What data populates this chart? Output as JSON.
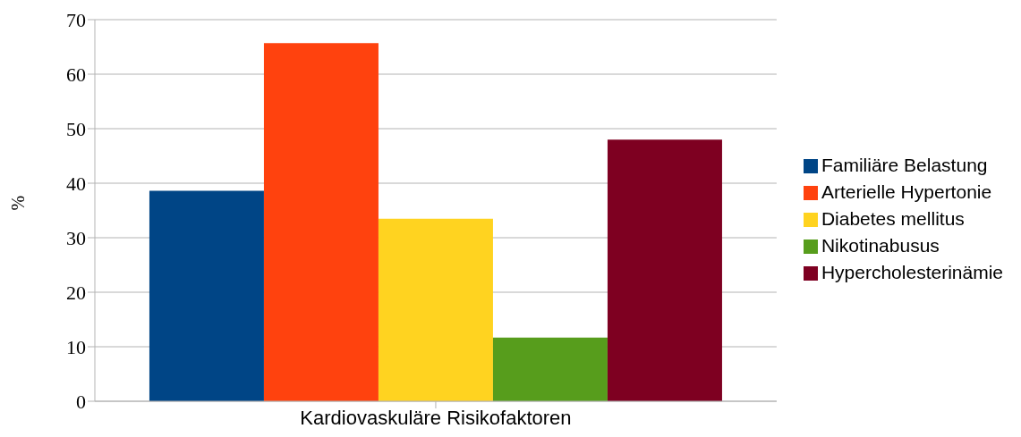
{
  "chart_data": {
    "type": "bar",
    "categories": [
      "Kardiovaskuläre Risikofaktoren"
    ],
    "ylabel": "%",
    "series": [
      {
        "name": "Familiäre Belastung",
        "color": "#004586",
        "values": [
          38.6
        ]
      },
      {
        "name": "Arterielle Hypertonie",
        "color": "#ff420e",
        "values": [
          65.7
        ]
      },
      {
        "name": "Diabetes mellitus",
        "color": "#ffd320",
        "values": [
          33.5
        ]
      },
      {
        "name": "Nikotinabusus",
        "color": "#579d1c",
        "values": [
          11.7
        ]
      },
      {
        "name": "Hypercholesterinämie",
        "color": "#7e0021",
        "values": [
          48.0
        ]
      }
    ],
    "ylim": [
      0,
      70
    ],
    "yticks": [
      0,
      10,
      20,
      30,
      40,
      50,
      60,
      70
    ],
    "grid": "y",
    "legend": "right"
  }
}
